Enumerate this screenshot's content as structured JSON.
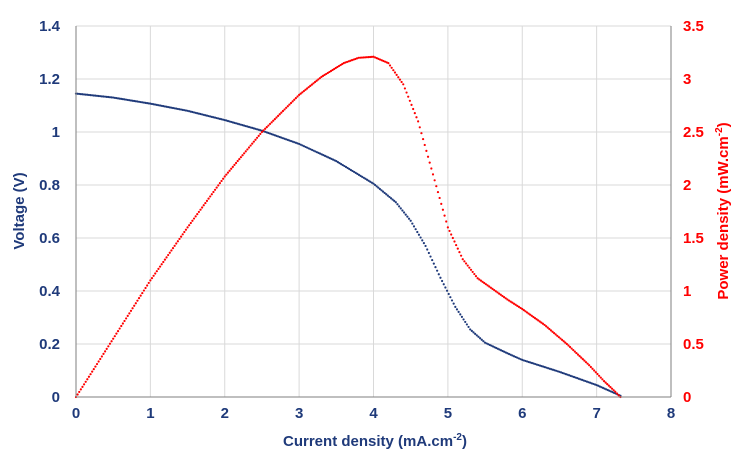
{
  "chart_data": {
    "type": "scatter",
    "xlabel": "Current density (mA.cm",
    "xlabel_sup": "-2",
    "xlabel_end": ")",
    "ylabel_left": "Voltage (V)",
    "ylabel_right": "Power density (mW.cm",
    "ylabel_right_sup": "-2",
    "ylabel_right_end": ")",
    "xlim": [
      0,
      8
    ],
    "ylim_left": [
      0,
      1.4
    ],
    "ylim_right": [
      0,
      3.5
    ],
    "x_ticks": [
      "0",
      "1",
      "2",
      "3",
      "4",
      "5",
      "6",
      "7",
      "8"
    ],
    "y_left_ticks": [
      "0",
      "0.2",
      "0.4",
      "0.6",
      "0.8",
      "1",
      "1.2",
      "1.4"
    ],
    "y_right_ticks": [
      "0",
      "0.5",
      "1",
      "1.5",
      "2",
      "2.5",
      "3",
      "3.5"
    ],
    "grid": true,
    "series": [
      {
        "axis": "left",
        "color": "#1f3a7a",
        "points": [
          [
            0,
            1.145
          ],
          [
            0.5,
            1.13
          ],
          [
            1,
            1.107
          ],
          [
            1.5,
            1.08
          ],
          [
            2,
            1.045
          ],
          [
            2.5,
            1.005
          ],
          [
            3,
            0.955
          ],
          [
            3.5,
            0.89
          ],
          [
            4,
            0.805
          ],
          [
            4.3,
            0.735
          ],
          [
            4.5,
            0.665
          ],
          [
            4.7,
            0.57
          ],
          [
            4.9,
            0.45
          ],
          [
            5.1,
            0.34
          ],
          [
            5.3,
            0.255
          ],
          [
            5.5,
            0.205
          ],
          [
            5.8,
            0.165
          ],
          [
            6.0,
            0.14
          ],
          [
            6.5,
            0.095
          ],
          [
            7.0,
            0.045
          ],
          [
            7.32,
            0.005
          ]
        ]
      },
      {
        "axis": "right",
        "color": "#ff0000",
        "points": [
          [
            0,
            0
          ],
          [
            0.5,
            0.55
          ],
          [
            1,
            1.1
          ],
          [
            1.5,
            1.6
          ],
          [
            2,
            2.08
          ],
          [
            2.5,
            2.5
          ],
          [
            3,
            2.85
          ],
          [
            3.3,
            3.02
          ],
          [
            3.6,
            3.15
          ],
          [
            3.8,
            3.2
          ],
          [
            4.0,
            3.21
          ],
          [
            4.2,
            3.15
          ],
          [
            4.4,
            2.95
          ],
          [
            4.6,
            2.6
          ],
          [
            4.8,
            2.1
          ],
          [
            5.0,
            1.6
          ],
          [
            5.2,
            1.3
          ],
          [
            5.4,
            1.12
          ],
          [
            5.6,
            1.02
          ],
          [
            5.8,
            0.92
          ],
          [
            6.0,
            0.83
          ],
          [
            6.3,
            0.68
          ],
          [
            6.6,
            0.5
          ],
          [
            6.9,
            0.3
          ],
          [
            7.1,
            0.15
          ],
          [
            7.25,
            0.05
          ],
          [
            7.32,
            0.0
          ]
        ]
      }
    ]
  }
}
